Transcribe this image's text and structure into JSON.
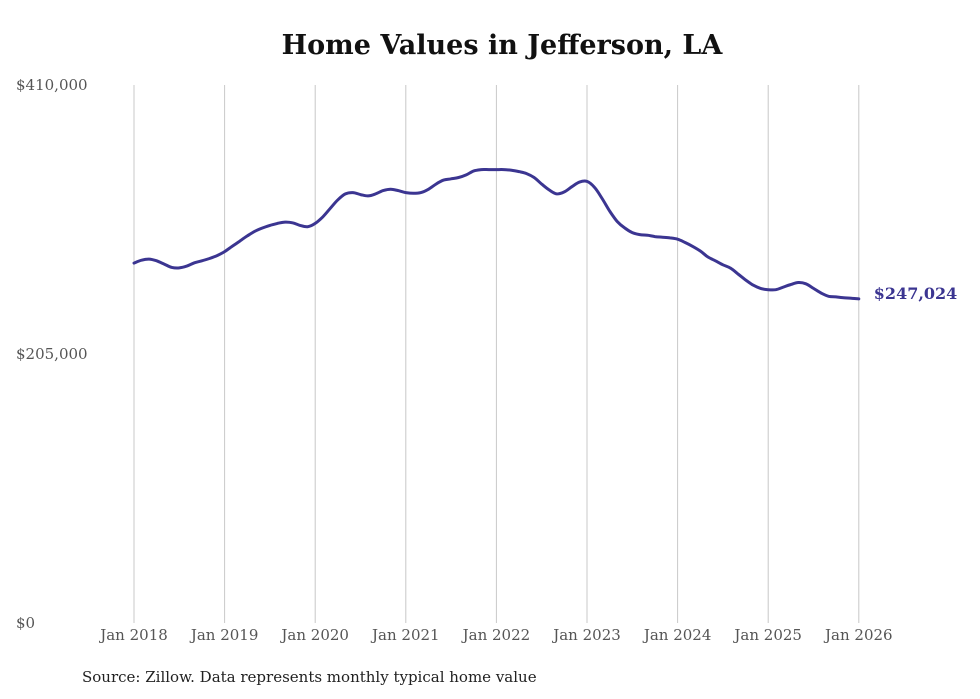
{
  "chart_data": {
    "type": "line",
    "title": "Home Values in Jefferson, LA",
    "xlabel": "",
    "ylabel": "",
    "source_note": "Source: Zillow. Data represents monthly typical home value",
    "ylim": [
      0,
      410000
    ],
    "y_ticks": [
      {
        "value": 0,
        "label": "$0"
      },
      {
        "value": 205000,
        "label": "$205,000"
      },
      {
        "value": 410000,
        "label": "$410,000"
      }
    ],
    "x_start": {
      "year": 2018,
      "month": 1
    },
    "x_ticks": [
      "Jan 2018",
      "Jan 2019",
      "Jan 2020",
      "Jan 2021",
      "Jan 2022",
      "Jan 2023",
      "Jan 2024",
      "Jan 2025",
      "Jan 2026"
    ],
    "grid": "vertical",
    "series": [
      {
        "name": "Typical home value",
        "color": "#3b3591",
        "end_label": "$247,024",
        "values": [
          274300,
          276500,
          277300,
          276000,
          273500,
          271000,
          270600,
          272000,
          274500,
          276000,
          277800,
          280000,
          283000,
          287000,
          291000,
          295000,
          298500,
          301000,
          303000,
          304500,
          305500,
          305000,
          303000,
          302000,
          304500,
          309500,
          316000,
          322500,
          327000,
          328000,
          326500,
          325500,
          327000,
          329500,
          330500,
          329500,
          328000,
          327500,
          328000,
          330500,
          334500,
          337500,
          338500,
          339500,
          341500,
          344500,
          345500,
          345500,
          345500,
          345500,
          345000,
          344000,
          342500,
          339500,
          334500,
          330000,
          327000,
          328500,
          332500,
          336000,
          336500,
          332000,
          323500,
          314000,
          306000,
          301000,
          297500,
          296000,
          295500,
          294500,
          294000,
          293500,
          292500,
          290000,
          287000,
          283500,
          279000,
          276000,
          273000,
          270500,
          266000,
          261500,
          257500,
          255000,
          254000,
          254000,
          256000,
          258000,
          259500,
          258500,
          255000,
          251500,
          249000,
          248500,
          247900,
          247500,
          247024
        ]
      }
    ]
  }
}
